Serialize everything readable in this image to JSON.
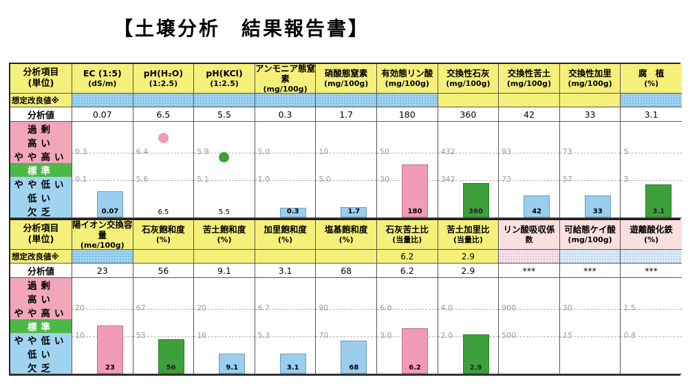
{
  "title": "【土壌分析　結果報告書】",
  "labels": {
    "item": "分析項目",
    "unit": "(単位)",
    "improve": "想定改良値※",
    "value": "分析値",
    "levels": [
      "過剰",
      "高い",
      "やや高い",
      "標準",
      "やや低い",
      "低い",
      "欠乏"
    ]
  },
  "colors": {
    "pink": "#f29bb5",
    "green": "#3ea03a",
    "blue": "#9bcdef",
    "yellow": "#f5f07a"
  },
  "table1": [
    {
      "name": "EC (1:5)",
      "unit": "(dS/m)",
      "improve": "",
      "improve_style": "blue",
      "value": "0.07",
      "upper": "0.3",
      "lower": "0.1",
      "kind": "bar",
      "color": "blue",
      "level": 0.27,
      "bar_label": "0.07"
    },
    {
      "name": "pH(H₂O)",
      "unit": "(1:2.5)",
      "improve": "",
      "improve_style": "blue",
      "value": "6.5",
      "upper": "6.4",
      "lower": "5.6",
      "kind": "dot",
      "color": "pink",
      "level": 0.77,
      "bar_label": "6.5"
    },
    {
      "name": "pH(KCl)",
      "unit": "(1:2.5)",
      "improve": "",
      "improve_style": "blue",
      "value": "5.5",
      "upper": "5.9",
      "lower": "5.1",
      "kind": "dot",
      "color": "green",
      "level": 0.57,
      "bar_label": "5.5"
    },
    {
      "name": "アンモニア態窒素",
      "unit": "(mg/100g)",
      "improve": "",
      "improve_style": "blue",
      "value": "0.3",
      "upper": "5.0",
      "lower": "1.0",
      "kind": "bar",
      "color": "blue",
      "level": 0.1,
      "bar_label": "0.3"
    },
    {
      "name": "硝酸態窒素",
      "unit": "(mg/100g)",
      "improve": "",
      "improve_style": "blue",
      "value": "1.7",
      "upper": "10",
      "lower": "5.0",
      "kind": "bar",
      "color": "blue",
      "level": 0.11,
      "bar_label": "1.7"
    },
    {
      "name": "有効態リン酸",
      "unit": "(mg/100g)",
      "improve": "",
      "improve_style": "blue",
      "value": "180",
      "upper": "50",
      "lower": "30",
      "kind": "bar",
      "color": "pink",
      "level": 0.55,
      "bar_label": "180"
    },
    {
      "name": "交換性石灰",
      "unit": "(mg/100g)",
      "improve": "",
      "improve_style": "yellow",
      "value": "360",
      "upper": "432",
      "lower": "342",
      "kind": "bar",
      "color": "green",
      "level": 0.36,
      "bar_label": "360"
    },
    {
      "name": "交換性苦土",
      "unit": "(mg/100g)",
      "improve": "",
      "improve_style": "yellow",
      "value": "42",
      "upper": "93",
      "lower": "73",
      "kind": "bar",
      "color": "blue",
      "level": 0.23,
      "bar_label": "42"
    },
    {
      "name": "交換性加里",
      "unit": "(mg/100g)",
      "improve": "",
      "improve_style": "yellow",
      "value": "33",
      "upper": "73",
      "lower": "57",
      "kind": "bar",
      "color": "blue",
      "level": 0.23,
      "bar_label": "33"
    },
    {
      "name": "腐　植",
      "unit": "(%)",
      "improve": "",
      "improve_style": "blue",
      "value": "3.1",
      "upper": "5",
      "lower": "3",
      "kind": "bar",
      "color": "green",
      "level": 0.34,
      "bar_label": "3.1"
    }
  ],
  "table2": [
    {
      "name": "陽イオン交換容量",
      "unit": "(me/100g)",
      "improve": "",
      "improve_style": "blue",
      "value": "23",
      "upper": "20",
      "lower": "10",
      "kind": "bar",
      "color": "pink",
      "level": 0.5,
      "bar_label": "23",
      "header_style": "yellow"
    },
    {
      "name": "石灰飽和度",
      "unit": "(%)",
      "improve": "",
      "improve_style": "yellow",
      "value": "56",
      "upper": "67",
      "lower": "53",
      "kind": "bar",
      "color": "green",
      "level": 0.36,
      "bar_label": "56",
      "header_style": "yellow"
    },
    {
      "name": "苦土飽和度",
      "unit": "(%)",
      "improve": "",
      "improve_style": "yellow",
      "value": "9.1",
      "upper": "20",
      "lower": "16",
      "kind": "bar",
      "color": "blue",
      "level": 0.21,
      "bar_label": "9.1",
      "header_style": "yellow"
    },
    {
      "name": "加里飽和度",
      "unit": "(%)",
      "improve": "",
      "improve_style": "yellow",
      "value": "3.1",
      "upper": "6.7",
      "lower": "5.3",
      "kind": "bar",
      "color": "blue",
      "level": 0.21,
      "bar_label": "3.1",
      "header_style": "yellow"
    },
    {
      "name": "塩基飽和度",
      "unit": "(%)",
      "improve": "",
      "improve_style": "yellow",
      "value": "68",
      "upper": "90",
      "lower": "70",
      "kind": "bar",
      "color": "blue",
      "level": 0.34,
      "bar_label": "68",
      "header_style": "yellow"
    },
    {
      "name": "石灰苦土比",
      "unit": "(当量比)",
      "improve": "6.2",
      "improve_style": "yellow",
      "value": "6.2",
      "upper": "6.0",
      "lower": "3.0",
      "kind": "bar",
      "color": "pink",
      "level": 0.47,
      "bar_label": "6.2",
      "header_style": "yellow"
    },
    {
      "name": "苦土加里比",
      "unit": "(当量比)",
      "improve": "2.9",
      "improve_style": "yellow",
      "value": "2.9",
      "upper": "4.0",
      "lower": "2.0",
      "kind": "bar",
      "color": "green",
      "level": 0.41,
      "bar_label": "2.9",
      "header_style": "yellow"
    },
    {
      "name": "リン酸吸収係",
      "unit": "数",
      "improve": "",
      "improve_style": "lpink",
      "value": "***",
      "upper": "900",
      "lower": "500",
      "kind": "none",
      "color": "",
      "level": 0,
      "bar_label": "",
      "header_style": "pink"
    },
    {
      "name": "可給態ケイ酸",
      "unit": "(mg/100g)",
      "improve": "",
      "improve_style": "lblue",
      "value": "***",
      "upper": "30",
      "lower": "15",
      "kind": "none",
      "color": "",
      "level": 0,
      "bar_label": "",
      "header_style": "pink",
      "lower_italic": true
    },
    {
      "name": "遊離酸化鉄",
      "unit": "(%)",
      "improve": "",
      "improve_style": "lblue",
      "value": "***",
      "upper": "1.5",
      "lower": "0.8",
      "kind": "none",
      "color": "",
      "level": 0,
      "bar_label": "",
      "header_style": "pink",
      "lower_italic": true
    }
  ]
}
